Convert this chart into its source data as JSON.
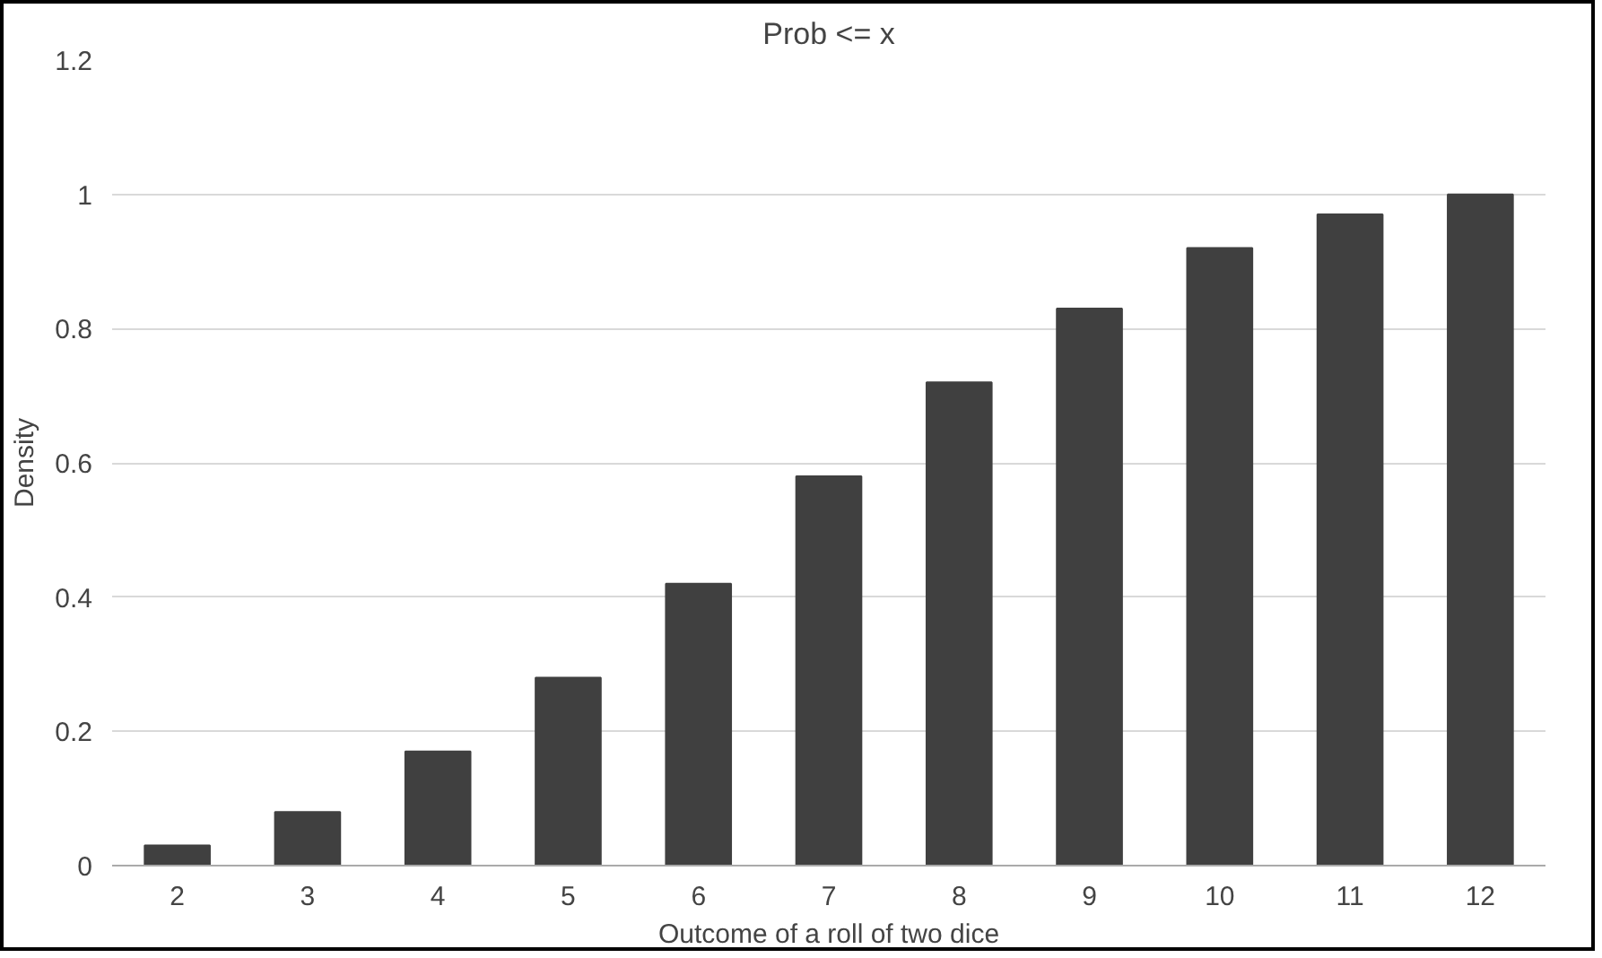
{
  "chart_data": {
    "type": "bar",
    "title": "Prob <= x",
    "xlabel": "Outcome of a roll of two dice",
    "ylabel": "Density",
    "categories": [
      "2",
      "3",
      "4",
      "5",
      "6",
      "7",
      "8",
      "9",
      "10",
      "11",
      "12"
    ],
    "values": [
      0.03,
      0.08,
      0.17,
      0.28,
      0.42,
      0.58,
      0.72,
      0.83,
      0.92,
      0.97,
      1
    ],
    "color": "#404040",
    "ylim": [
      0,
      1.2
    ],
    "yticks": [
      0,
      0.2,
      0.4,
      0.6,
      0.8,
      1,
      1.2
    ],
    "grid": "y"
  }
}
